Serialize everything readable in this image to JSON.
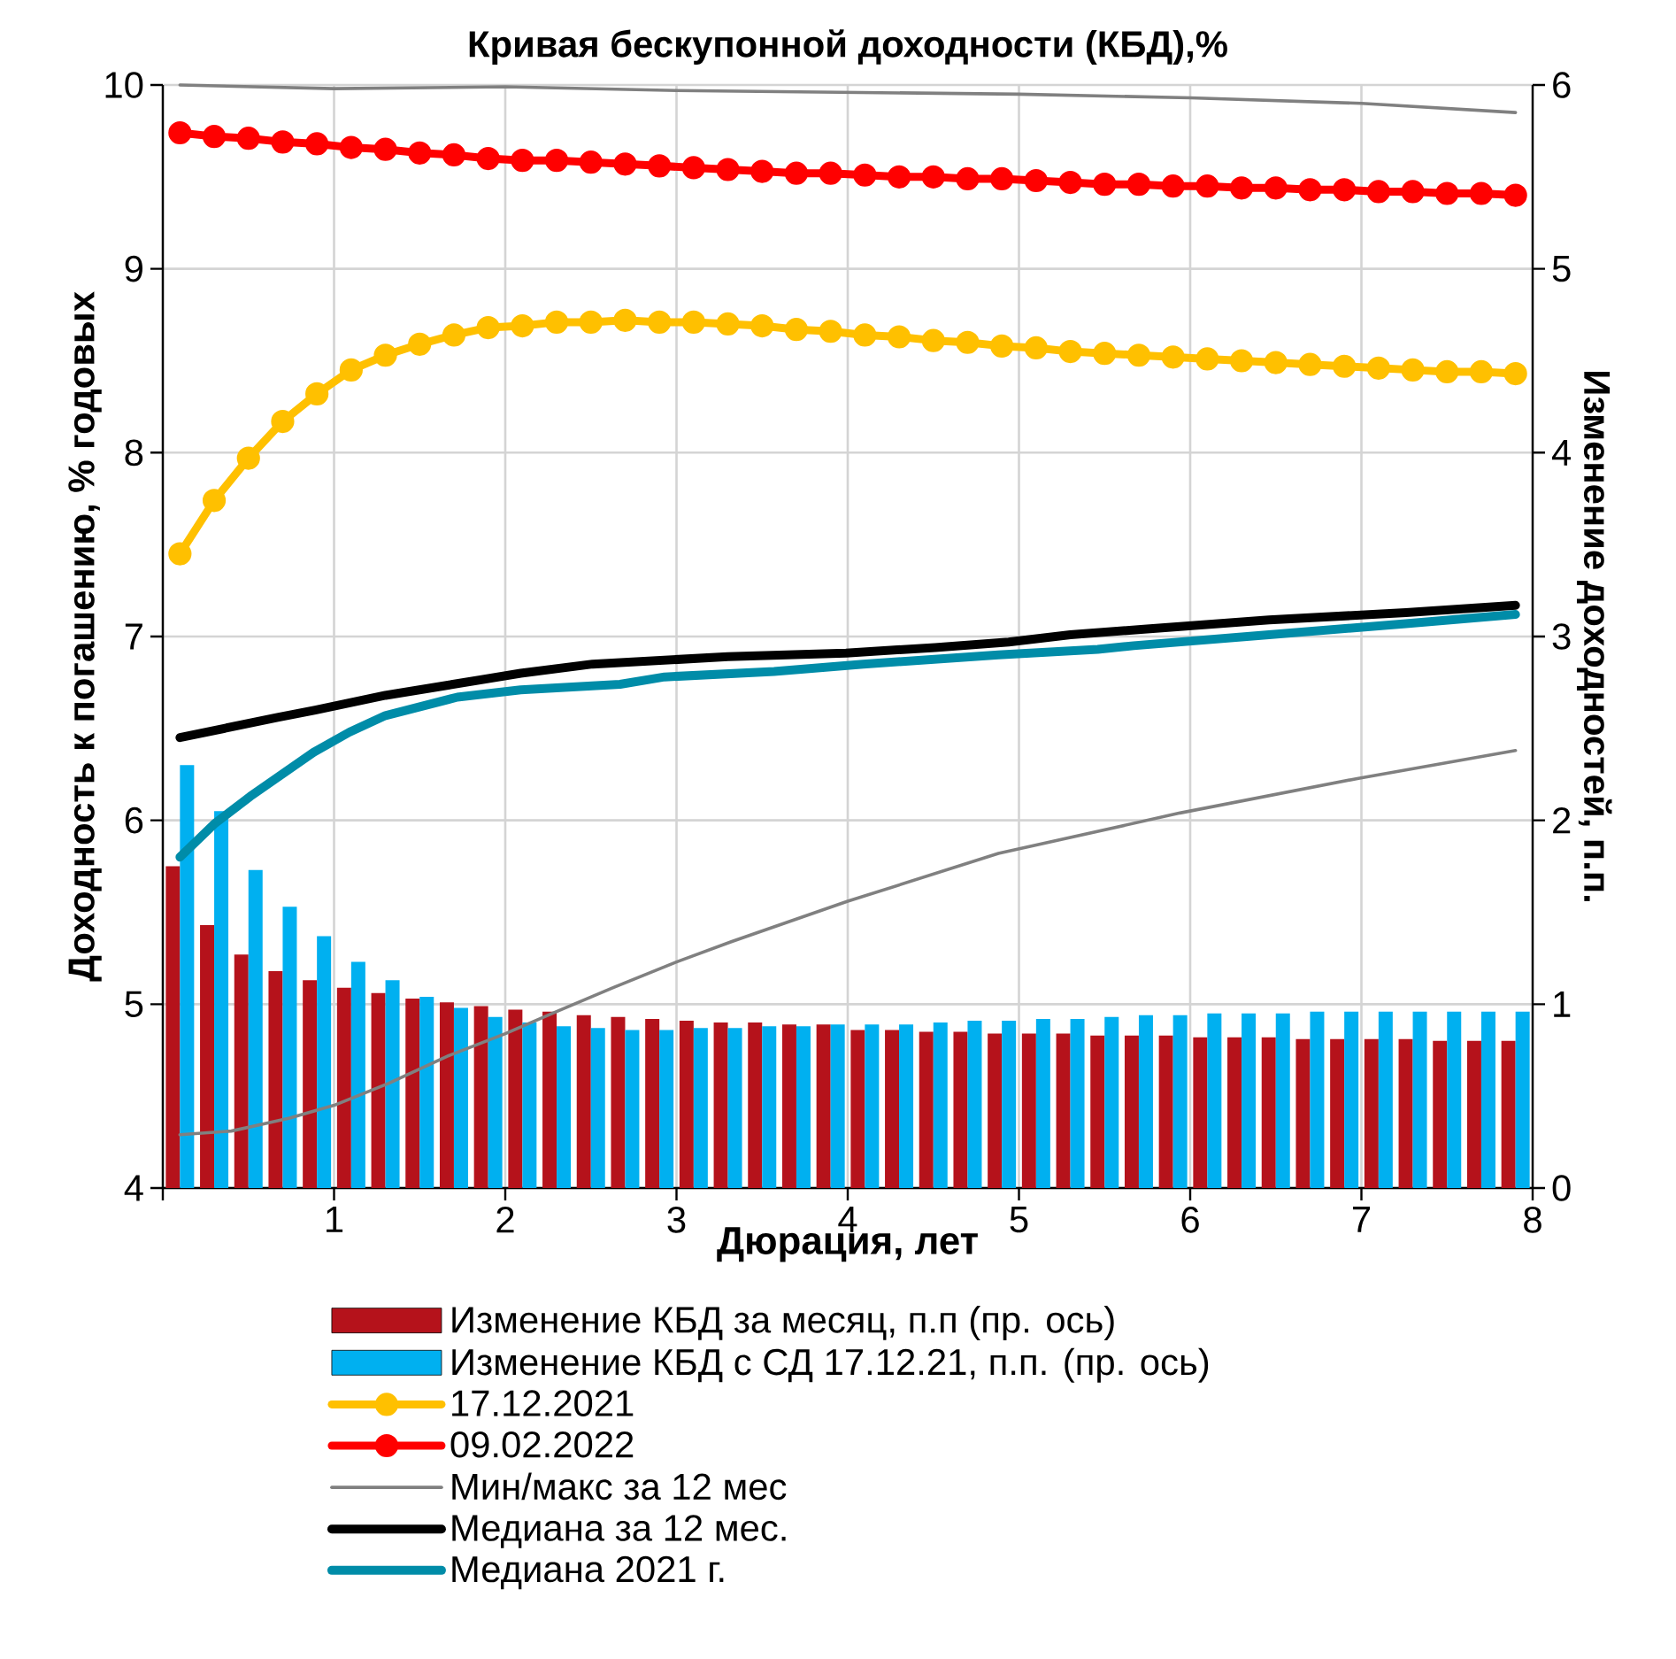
{
  "chart_data": {
    "type": "line",
    "title": "Кривая бескупонной доходности (КБД),%",
    "xlabel": "Дюрация, лет",
    "ylabel": "Доходность к погашению, % годовых",
    "y2label": "Изменение доходностей, п.п.",
    "x": [
      0.1,
      0.3,
      0.5,
      0.7,
      0.9,
      1.1,
      1.3,
      1.5,
      1.7,
      1.9,
      2.1,
      2.3,
      2.5,
      2.7,
      2.9,
      3.1,
      3.3,
      3.5,
      3.7,
      3.9,
      4.1,
      4.3,
      4.5,
      4.7,
      4.9,
      5.1,
      5.3,
      5.5,
      5.7,
      5.9,
      6.1,
      6.3,
      6.5,
      6.7,
      6.9,
      7.1,
      7.3,
      7.5,
      7.7,
      7.9
    ],
    "xlim": [
      0,
      8
    ],
    "xticks": [
      {
        "value": 0,
        "label": null
      },
      1,
      2,
      3,
      4,
      5,
      6,
      7,
      8
    ],
    "ylim": [
      4,
      10
    ],
    "yticks": [
      4,
      5,
      6,
      7,
      8,
      9,
      10
    ],
    "y2lim": [
      0,
      6
    ],
    "y2ticks": [
      0,
      1,
      2,
      3,
      4,
      5,
      6
    ],
    "grid": true,
    "legend": "bottom",
    "series": [
      {
        "name": "Изменение КБД за месяц, п.п (пр. ось)",
        "type": "bar",
        "axis": "y2",
        "color": "#b5121b",
        "values": [
          1.75,
          1.43,
          1.27,
          1.18,
          1.13,
          1.09,
          1.06,
          1.03,
          1.01,
          0.99,
          0.97,
          0.96,
          0.94,
          0.93,
          0.92,
          0.91,
          0.9,
          0.9,
          0.89,
          0.89,
          0.86,
          0.86,
          0.85,
          0.85,
          0.84,
          0.84,
          0.84,
          0.83,
          0.83,
          0.83,
          0.82,
          0.82,
          0.82,
          0.81,
          0.81,
          0.81,
          0.81,
          0.8,
          0.8,
          0.8
        ]
      },
      {
        "name": "Изменение КБД с СД 17.12.21, п.п. (пр. ось)",
        "type": "bar",
        "axis": "y2",
        "color": "#00b0f0",
        "values": [
          2.3,
          2.05,
          1.73,
          1.53,
          1.37,
          1.23,
          1.13,
          1.04,
          0.98,
          0.93,
          0.9,
          0.88,
          0.87,
          0.86,
          0.86,
          0.87,
          0.87,
          0.88,
          0.88,
          0.89,
          0.89,
          0.89,
          0.9,
          0.91,
          0.91,
          0.92,
          0.92,
          0.93,
          0.94,
          0.94,
          0.95,
          0.95,
          0.95,
          0.96,
          0.96,
          0.96,
          0.96,
          0.96,
          0.96,
          0.96
        ]
      },
      {
        "name": "17.12.2021",
        "color": "#ffc000",
        "marker": "circle",
        "values": [
          7.45,
          7.74,
          7.97,
          8.17,
          8.32,
          8.45,
          8.53,
          8.59,
          8.64,
          8.68,
          8.69,
          8.71,
          8.71,
          8.72,
          8.71,
          8.71,
          8.7,
          8.69,
          8.67,
          8.66,
          8.64,
          8.63,
          8.61,
          8.6,
          8.58,
          8.57,
          8.55,
          8.54,
          8.53,
          8.52,
          8.51,
          8.5,
          8.49,
          8.48,
          8.47,
          8.46,
          8.45,
          8.44,
          8.44,
          8.43
        ]
      },
      {
        "name": "09.02.2022",
        "color": "#ff0000",
        "marker": "circle",
        "values": [
          9.74,
          9.72,
          9.71,
          9.69,
          9.68,
          9.66,
          9.65,
          9.63,
          9.62,
          9.6,
          9.59,
          9.59,
          9.58,
          9.57,
          9.56,
          9.55,
          9.54,
          9.53,
          9.52,
          9.52,
          9.51,
          9.5,
          9.5,
          9.49,
          9.49,
          9.48,
          9.47,
          9.46,
          9.46,
          9.45,
          9.45,
          9.44,
          9.44,
          9.43,
          9.43,
          9.42,
          9.42,
          9.41,
          9.41,
          9.4
        ]
      },
      {
        "name": "Мин/макс за 12 мес",
        "color": "#808080",
        "x": [
          0.1,
          1,
          2,
          3,
          4,
          5,
          6,
          7,
          7.9
        ],
        "values": [
          10.0,
          9.98,
          9.99,
          9.97,
          9.96,
          9.95,
          9.93,
          9.9,
          9.85
        ]
      },
      {
        "color": "#808080",
        "x": [
          0.1,
          0.4,
          0.74,
          1,
          1.32,
          1.67,
          2,
          2.3,
          2.63,
          3,
          3.32,
          3.66,
          4,
          4.88,
          5.94,
          6.99,
          7.9
        ],
        "values": [
          4.29,
          4.31,
          4.38,
          4.45,
          4.57,
          4.72,
          4.84,
          4.96,
          5.09,
          5.23,
          5.34,
          5.45,
          5.56,
          5.82,
          6.04,
          6.23,
          6.38
        ]
      },
      {
        "name": "Медиана за 12 мес.",
        "color": "#000000",
        "x": [
          0.1,
          0.67,
          0.89,
          1.3,
          2.09,
          2.51,
          3.3,
          3.99,
          4.51,
          4.94,
          5.3,
          5.73,
          6.46,
          7.26,
          7.9
        ],
        "values": [
          6.45,
          6.56,
          6.6,
          6.68,
          6.8,
          6.85,
          6.89,
          6.91,
          6.94,
          6.97,
          7.01,
          7.04,
          7.09,
          7.13,
          7.17
        ]
      },
      {
        "name": "Медиана 2021 г.",
        "color": "#008ca8",
        "x": [
          0.1,
          0.3,
          0.51,
          0.88,
          1.09,
          1.3,
          1.72,
          2.09,
          2.67,
          2.93,
          3.57,
          4.09,
          4.88,
          5.46,
          5.67,
          6.46,
          7.26,
          7.9
        ],
        "values": [
          5.8,
          5.98,
          6.13,
          6.37,
          6.48,
          6.57,
          6.67,
          6.71,
          6.74,
          6.78,
          6.81,
          6.85,
          6.9,
          6.93,
          6.95,
          7.01,
          7.07,
          7.12
        ]
      }
    ]
  }
}
